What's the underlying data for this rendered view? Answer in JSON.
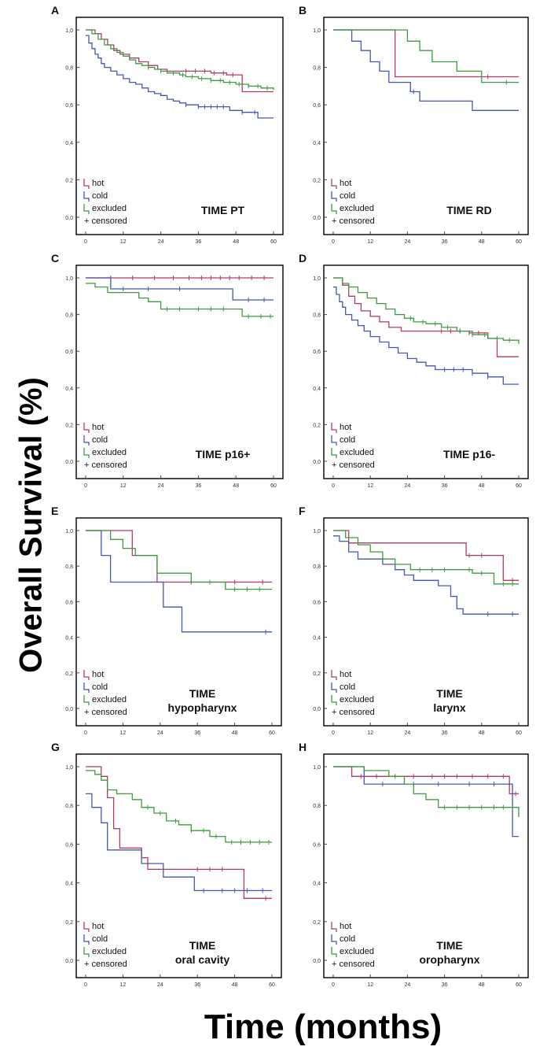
{
  "figure": {
    "ylabel": "Overall Survival (%)",
    "xlabel": "Time (months)",
    "colors": {
      "hot": "#b03a6a",
      "cold": "#4656b4",
      "excluded": "#3f9a3f"
    }
  },
  "chart_data": [
    {
      "panel": "A",
      "type": "line",
      "step": true,
      "title_lines": [
        "TIME PT"
      ],
      "xticks": [
        "0",
        "12",
        "24",
        "36",
        "48",
        "60"
      ],
      "yticks": [
        "0,0",
        "0,2",
        "0,4",
        "0,6",
        "0,8",
        "1,0"
      ],
      "xlim": [
        0,
        60
      ],
      "ylim": [
        0,
        1
      ],
      "legend": [
        "hot",
        "cold",
        "excluded",
        "+ censored"
      ],
      "series": [
        {
          "name": "hot",
          "x": [
            0,
            3,
            5,
            7,
            9,
            11,
            14,
            17,
            20,
            23,
            26,
            30,
            35,
            40,
            45,
            50,
            60
          ],
          "y": [
            1.0,
            0.98,
            0.95,
            0.92,
            0.89,
            0.87,
            0.85,
            0.83,
            0.81,
            0.79,
            0.78,
            0.78,
            0.78,
            0.77,
            0.76,
            0.67,
            0.67
          ],
          "censored": [
            32,
            35,
            38,
            41,
            44,
            47
          ]
        },
        {
          "name": "cold",
          "x": [
            0,
            1,
            2,
            3,
            4,
            5,
            6,
            8,
            10,
            12,
            14,
            16,
            18,
            20,
            22,
            24,
            26,
            28,
            30,
            32,
            34,
            36,
            38,
            42,
            46,
            50,
            55,
            60
          ],
          "y": [
            0.97,
            0.93,
            0.9,
            0.87,
            0.85,
            0.82,
            0.8,
            0.78,
            0.76,
            0.74,
            0.72,
            0.71,
            0.69,
            0.67,
            0.66,
            0.65,
            0.63,
            0.62,
            0.61,
            0.6,
            0.6,
            0.59,
            0.59,
            0.59,
            0.57,
            0.56,
            0.53,
            0.53
          ],
          "censored": [
            32,
            36,
            38,
            40,
            42,
            44,
            50,
            54
          ]
        },
        {
          "name": "excluded",
          "x": [
            0,
            2,
            4,
            6,
            8,
            10,
            12,
            14,
            16,
            18,
            20,
            22,
            24,
            26,
            28,
            30,
            32,
            34,
            36,
            40,
            44,
            48,
            52,
            56,
            60
          ],
          "y": [
            1.0,
            0.98,
            0.95,
            0.92,
            0.9,
            0.88,
            0.86,
            0.84,
            0.82,
            0.81,
            0.8,
            0.79,
            0.78,
            0.77,
            0.77,
            0.76,
            0.75,
            0.75,
            0.74,
            0.73,
            0.72,
            0.71,
            0.7,
            0.69,
            0.68
          ],
          "censored": [
            20,
            24,
            28,
            31,
            34,
            37,
            40,
            43,
            46,
            49,
            52,
            55,
            58
          ]
        }
      ]
    },
    {
      "panel": "B",
      "type": "line",
      "step": true,
      "title_lines": [
        "TIME RD"
      ],
      "xticks": [
        "0",
        "12",
        "24",
        "36",
        "48",
        "60"
      ],
      "yticks": [
        "0,0",
        "0,2",
        "0,4",
        "0,6",
        "0,8",
        "1,0"
      ],
      "xlim": [
        0,
        60
      ],
      "ylim": [
        0,
        1
      ],
      "legend": [
        "hot",
        "cold",
        "excluded",
        "+ censored"
      ],
      "series": [
        {
          "name": "hot",
          "x": [
            0,
            19,
            20,
            60
          ],
          "y": [
            1.0,
            1.0,
            0.75,
            0.75
          ],
          "censored": [
            50
          ]
        },
        {
          "name": "cold",
          "x": [
            0,
            6,
            9,
            12,
            15,
            18,
            22,
            25,
            28,
            30,
            36,
            45,
            60
          ],
          "y": [
            1.0,
            0.94,
            0.89,
            0.83,
            0.78,
            0.72,
            0.72,
            0.67,
            0.62,
            0.62,
            0.62,
            0.57,
            0.57
          ],
          "censored": [
            26
          ]
        },
        {
          "name": "excluded",
          "x": [
            0,
            16,
            24,
            28,
            32,
            40,
            48,
            60
          ],
          "y": [
            1.0,
            1.0,
            0.94,
            0.89,
            0.83,
            0.78,
            0.72,
            0.72
          ],
          "censored": [
            56
          ]
        }
      ]
    },
    {
      "panel": "C",
      "type": "line",
      "step": true,
      "title_lines": [
        "TIME p16+"
      ],
      "xticks": [
        "0",
        "12",
        "24",
        "36",
        "48",
        "60"
      ],
      "yticks": [
        "0,0",
        "0,2",
        "0,4",
        "0,6",
        "0,8",
        "1,0"
      ],
      "xlim": [
        0,
        60
      ],
      "ylim": [
        0,
        1
      ],
      "legend": [
        "hot",
        "cold",
        "excluded",
        "+ censored"
      ],
      "series": [
        {
          "name": "hot",
          "x": [
            0,
            60
          ],
          "y": [
            1.0,
            1.0
          ],
          "censored": [
            8,
            15,
            22,
            28,
            33,
            37,
            40,
            43,
            46,
            49,
            53,
            57
          ]
        },
        {
          "name": "cold",
          "x": [
            0,
            8,
            39,
            47,
            60
          ],
          "y": [
            1.0,
            0.94,
            0.94,
            0.88,
            0.88
          ],
          "censored": [
            12,
            20,
            30,
            52,
            57
          ]
        },
        {
          "name": "excluded",
          "x": [
            0,
            3,
            7,
            12,
            17,
            20,
            24,
            33,
            50,
            60
          ],
          "y": [
            0.97,
            0.95,
            0.92,
            0.92,
            0.89,
            0.87,
            0.83,
            0.83,
            0.79,
            0.79
          ],
          "censored": [
            26,
            30,
            36,
            40,
            44,
            52,
            56,
            59
          ]
        }
      ]
    },
    {
      "panel": "D",
      "type": "line",
      "step": true,
      "title_lines": [
        "TIME p16-"
      ],
      "xticks": [
        "0",
        "12",
        "24",
        "36",
        "48",
        "60"
      ],
      "yticks": [
        "0,0",
        "0,2",
        "0,4",
        "0,6",
        "0,8",
        "1,0"
      ],
      "xlim": [
        0,
        60
      ],
      "ylim": [
        0,
        1
      ],
      "legend": [
        "hot",
        "cold",
        "excluded",
        "+ censored"
      ],
      "series": [
        {
          "name": "hot",
          "x": [
            0,
            3,
            5,
            7,
            9,
            12,
            15,
            18,
            22,
            28,
            35,
            44,
            50,
            53,
            60
          ],
          "y": [
            1.0,
            0.96,
            0.9,
            0.86,
            0.82,
            0.79,
            0.76,
            0.73,
            0.71,
            0.71,
            0.71,
            0.7,
            0.67,
            0.57,
            0.57
          ],
          "censored": [
            35,
            38,
            41,
            44,
            47
          ]
        },
        {
          "name": "cold",
          "x": [
            0,
            1,
            2,
            3,
            4,
            6,
            8,
            10,
            12,
            15,
            18,
            21,
            24,
            27,
            30,
            33,
            36,
            40,
            45,
            50,
            55,
            60
          ],
          "y": [
            0.95,
            0.91,
            0.87,
            0.84,
            0.8,
            0.77,
            0.74,
            0.71,
            0.68,
            0.65,
            0.62,
            0.59,
            0.56,
            0.54,
            0.52,
            0.5,
            0.5,
            0.5,
            0.48,
            0.46,
            0.42,
            0.42
          ],
          "censored": [
            36,
            39,
            42,
            45,
            50
          ]
        },
        {
          "name": "excluded",
          "x": [
            0,
            3,
            5,
            8,
            11,
            14,
            17,
            20,
            23,
            26,
            30,
            35,
            40,
            45,
            50,
            55,
            60
          ],
          "y": [
            1.0,
            0.97,
            0.95,
            0.92,
            0.89,
            0.86,
            0.83,
            0.8,
            0.78,
            0.76,
            0.75,
            0.73,
            0.71,
            0.69,
            0.67,
            0.66,
            0.64
          ],
          "censored": [
            25,
            29,
            33,
            37,
            41,
            45,
            49,
            53,
            57
          ]
        }
      ]
    },
    {
      "panel": "E",
      "type": "line",
      "step": true,
      "title_lines": [
        "TIME",
        "hypopharynx"
      ],
      "xticks": [
        "0",
        "12",
        "24",
        "36",
        "48",
        "60"
      ],
      "yticks": [
        "0,0",
        "0,2",
        "0,4",
        "0,6",
        "0,8",
        "1,0"
      ],
      "xlim": [
        0,
        60
      ],
      "ylim": [
        0,
        1
      ],
      "legend": [
        "hot",
        "cold",
        "excluded",
        "+ censored"
      ],
      "series": [
        {
          "name": "hot",
          "x": [
            0,
            12,
            15,
            20,
            23,
            60
          ],
          "y": [
            1.0,
            1.0,
            0.86,
            0.86,
            0.71,
            0.71
          ],
          "censored": [
            34,
            48,
            57
          ]
        },
        {
          "name": "cold",
          "x": [
            0,
            5,
            8,
            25,
            31,
            60
          ],
          "y": [
            1.0,
            0.86,
            0.71,
            0.57,
            0.43,
            0.43
          ],
          "censored": [
            58
          ]
        },
        {
          "name": "excluded",
          "x": [
            0,
            8,
            12,
            16,
            23,
            34,
            45,
            60
          ],
          "y": [
            1.0,
            0.95,
            0.9,
            0.86,
            0.76,
            0.71,
            0.67,
            0.67
          ],
          "censored": [
            40,
            48,
            52,
            56
          ]
        }
      ]
    },
    {
      "panel": "F",
      "type": "line",
      "step": true,
      "title_lines": [
        "TIME",
        "larynx"
      ],
      "xticks": [
        "0",
        "12",
        "24",
        "36",
        "48",
        "60"
      ],
      "yticks": [
        "0,0",
        "0,2",
        "0,4",
        "0,6",
        "0,8",
        "1,0"
      ],
      "xlim": [
        0,
        60
      ],
      "ylim": [
        0,
        1
      ],
      "legend": [
        "hot",
        "cold",
        "excluded",
        "+ censored"
      ],
      "series": [
        {
          "name": "hot",
          "x": [
            0,
            5,
            40,
            43,
            52,
            55,
            60
          ],
          "y": [
            1.0,
            0.93,
            0.93,
            0.86,
            0.86,
            0.72,
            0.72
          ],
          "censored": [
            44,
            48,
            58
          ]
        },
        {
          "name": "cold",
          "x": [
            0,
            2,
            5,
            8,
            12,
            16,
            20,
            23,
            26,
            30,
            34,
            38,
            40,
            42,
            60
          ],
          "y": [
            0.97,
            0.94,
            0.88,
            0.84,
            0.84,
            0.81,
            0.78,
            0.75,
            0.72,
            0.72,
            0.69,
            0.63,
            0.56,
            0.53,
            0.53
          ],
          "censored": [
            50,
            58
          ]
        },
        {
          "name": "excluded",
          "x": [
            0,
            4,
            8,
            12,
            16,
            20,
            25,
            40,
            45,
            52,
            60
          ],
          "y": [
            1.0,
            0.96,
            0.92,
            0.88,
            0.84,
            0.81,
            0.78,
            0.78,
            0.76,
            0.7,
            0.7
          ],
          "censored": [
            28,
            32,
            36,
            44,
            48,
            55,
            58
          ]
        }
      ]
    },
    {
      "panel": "G",
      "type": "line",
      "step": true,
      "title_lines": [
        "TIME",
        "oral cavity"
      ],
      "xticks": [
        "0",
        "12",
        "24",
        "36",
        "48",
        "60"
      ],
      "yticks": [
        "0,0",
        "0,2",
        "0,4",
        "0,6",
        "0,8",
        "1,0"
      ],
      "xlim": [
        0,
        60
      ],
      "ylim": [
        0,
        1
      ],
      "legend": [
        "hot",
        "cold",
        "excluded",
        "+ censored"
      ],
      "series": [
        {
          "name": "hot",
          "x": [
            0,
            5,
            7,
            9,
            11,
            18,
            20,
            24,
            50,
            51,
            60
          ],
          "y": [
            1.0,
            0.95,
            0.84,
            0.68,
            0.58,
            0.53,
            0.47,
            0.47,
            0.47,
            0.32,
            0.32
          ],
          "censored": [
            36,
            40,
            44,
            58
          ]
        },
        {
          "name": "cold",
          "x": [
            0,
            2,
            5,
            7,
            13,
            18,
            25,
            35,
            60
          ],
          "y": [
            0.86,
            0.79,
            0.71,
            0.57,
            0.57,
            0.5,
            0.43,
            0.36,
            0.36
          ],
          "censored": [
            38,
            44,
            48,
            52,
            57
          ]
        },
        {
          "name": "excluded",
          "x": [
            0,
            3,
            5,
            7,
            10,
            15,
            18,
            22,
            26,
            30,
            34,
            40,
            45,
            60
          ],
          "y": [
            0.98,
            0.96,
            0.93,
            0.88,
            0.86,
            0.83,
            0.79,
            0.76,
            0.72,
            0.7,
            0.67,
            0.64,
            0.61,
            0.61
          ],
          "censored": [
            20,
            24,
            29,
            34,
            38,
            42,
            47,
            50,
            53,
            56,
            59
          ]
        }
      ]
    },
    {
      "panel": "H",
      "type": "line",
      "step": true,
      "title_lines": [
        "TIME",
        "oropharynx"
      ],
      "xticks": [
        "0",
        "12",
        "24",
        "36",
        "48",
        "60"
      ],
      "yticks": [
        "0,0",
        "0,2",
        "0,4",
        "0,6",
        "0,8",
        "1,0"
      ],
      "xlim": [
        0,
        60
      ],
      "ylim": [
        0,
        1
      ],
      "legend": [
        "hot",
        "cold",
        "excluded",
        "+ censored"
      ],
      "series": [
        {
          "name": "hot",
          "x": [
            0,
            6,
            56,
            57,
            60
          ],
          "y": [
            1.0,
            0.95,
            0.95,
            0.86,
            0.86
          ],
          "censored": [
            9,
            14,
            20,
            26,
            32,
            36,
            40,
            45,
            50,
            55,
            59
          ]
        },
        {
          "name": "cold",
          "x": [
            0,
            6,
            10,
            56,
            58,
            60
          ],
          "y": [
            1.0,
            1.0,
            0.91,
            0.91,
            0.64,
            0.64
          ],
          "censored": [
            16,
            26,
            34,
            44,
            52
          ]
        },
        {
          "name": "excluded",
          "x": [
            0,
            10,
            18,
            23,
            26,
            30,
            34,
            56,
            60
          ],
          "y": [
            1.0,
            0.98,
            0.95,
            0.91,
            0.86,
            0.83,
            0.79,
            0.79,
            0.74
          ],
          "censored": [
            36,
            40,
            44,
            48,
            52,
            55,
            58
          ]
        }
      ]
    }
  ]
}
